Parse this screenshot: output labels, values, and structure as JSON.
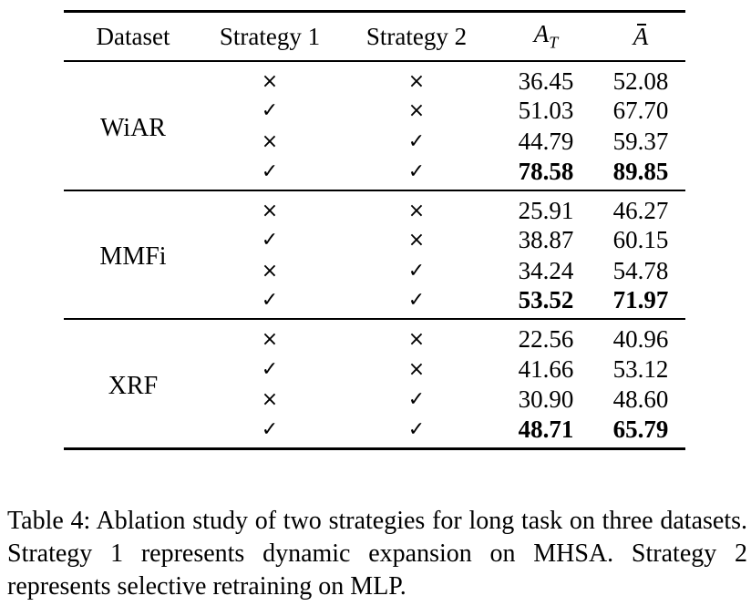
{
  "table": {
    "headers": {
      "dataset": "Dataset",
      "strategy1": "Strategy 1",
      "strategy2": "Strategy 2",
      "at_main": "A",
      "at_sub": "T",
      "abar": "A"
    },
    "groups": [
      {
        "dataset": "WiAR",
        "rows": [
          {
            "s1": "×",
            "s2": "×",
            "at": "36.45",
            "abar": "52.08",
            "bold": false
          },
          {
            "s1": "✓",
            "s2": "×",
            "at": "51.03",
            "abar": "67.70",
            "bold": false
          },
          {
            "s1": "×",
            "s2": "✓",
            "at": "44.79",
            "abar": "59.37",
            "bold": false
          },
          {
            "s1": "✓",
            "s2": "✓",
            "at": "78.58",
            "abar": "89.85",
            "bold": true
          }
        ]
      },
      {
        "dataset": "MMFi",
        "rows": [
          {
            "s1": "×",
            "s2": "×",
            "at": "25.91",
            "abar": "46.27",
            "bold": false
          },
          {
            "s1": "✓",
            "s2": "×",
            "at": "38.87",
            "abar": "60.15",
            "bold": false
          },
          {
            "s1": "×",
            "s2": "✓",
            "at": "34.24",
            "abar": "54.78",
            "bold": false
          },
          {
            "s1": "✓",
            "s2": "✓",
            "at": "53.52",
            "abar": "71.97",
            "bold": true
          }
        ]
      },
      {
        "dataset": "XRF",
        "rows": [
          {
            "s1": "×",
            "s2": "×",
            "at": "22.56",
            "abar": "40.96",
            "bold": false
          },
          {
            "s1": "✓",
            "s2": "×",
            "at": "41.66",
            "abar": "53.12",
            "bold": false
          },
          {
            "s1": "×",
            "s2": "✓",
            "at": "30.90",
            "abar": "48.60",
            "bold": false
          },
          {
            "s1": "✓",
            "s2": "✓",
            "at": "48.71",
            "abar": "65.79",
            "bold": true
          }
        ]
      }
    ]
  },
  "caption": "Table 4: Ablation study of two strategies for long task on three datasets. Strategy 1 represents dynamic expansion on MHSA. Strategy 2 represents selective retraining on MLP."
}
